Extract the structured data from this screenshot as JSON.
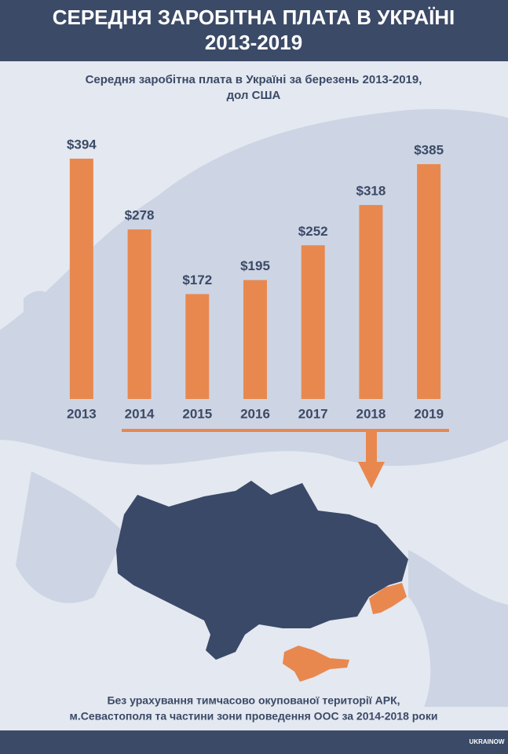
{
  "chart_data": {
    "type": "bar",
    "title_lines": [
      "СЕРЕДНЯ ЗАРОБІТНА ПЛАТА В УКРАЇНІ",
      "2013-2019"
    ],
    "subtitle_lines": [
      "Середня заробітна плата в Україні за березень 2013-2019,",
      "дол США"
    ],
    "categories": [
      "2013",
      "2014",
      "2015",
      "2016",
      "2017",
      "2018",
      "2019"
    ],
    "values": [
      394,
      278,
      172,
      195,
      252,
      318,
      385
    ],
    "value_labels": [
      "$394",
      "$278",
      "$172",
      "$195",
      "$252",
      "$318",
      "$385"
    ],
    "color": "#e8884f",
    "note_lines": [
      "Без урахування тимчасово окупованої території АРК,",
      "м.Севастополя та частини зони проведення ООС за 2014-2018 роки"
    ],
    "logo": "UKRAINOW"
  }
}
